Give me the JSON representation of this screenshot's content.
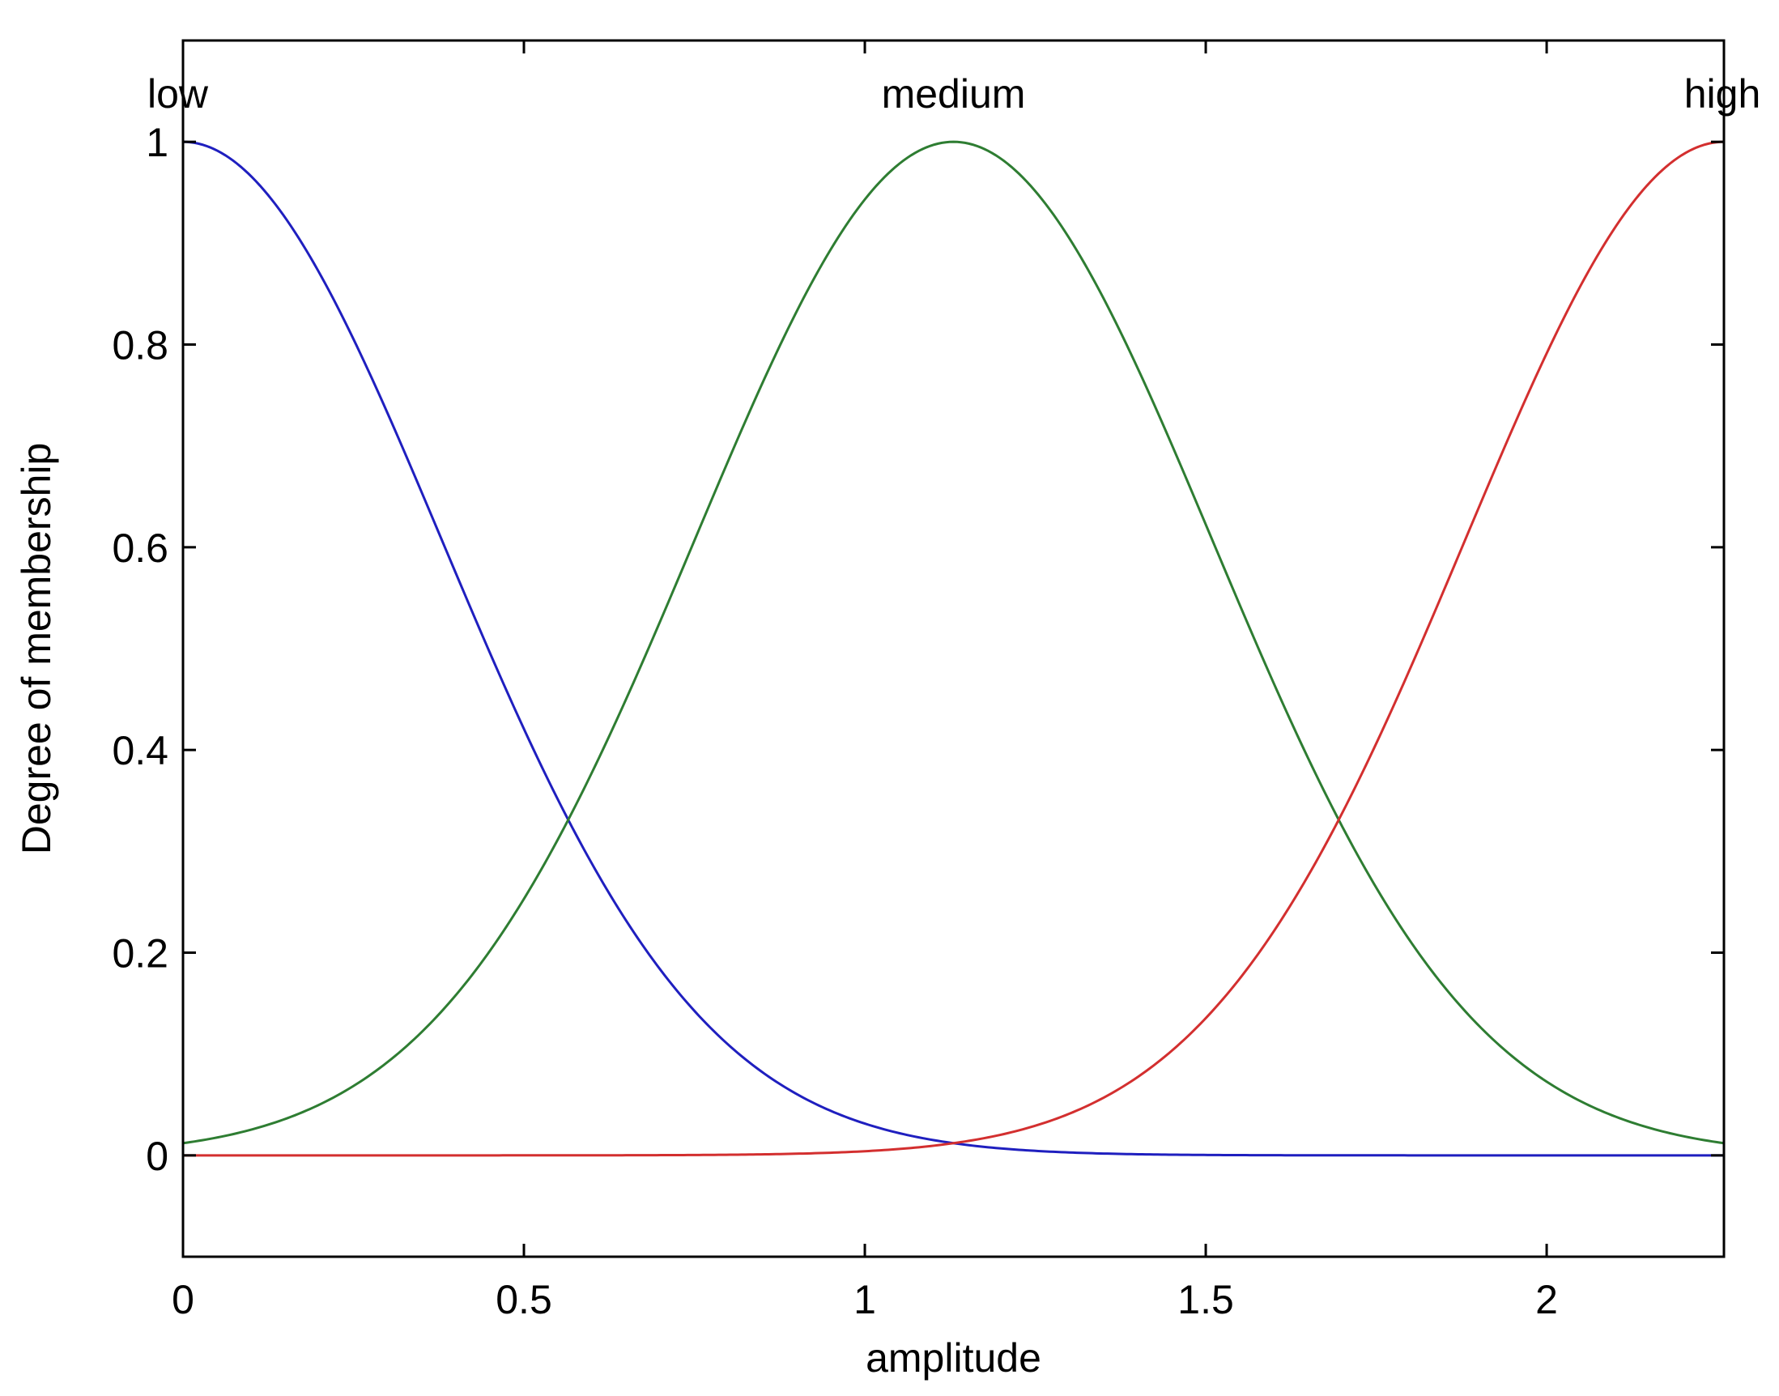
{
  "chart_data": {
    "type": "line",
    "xlabel": "amplitude",
    "ylabel": "Degree of membership",
    "xlim": [
      0,
      2.26
    ],
    "ylim": [
      -0.1,
      1.1
    ],
    "x_ticks": [
      0,
      0.5,
      1,
      1.5,
      2
    ],
    "x_tick_labels": [
      "0",
      "0.5",
      "1",
      "1.5",
      "2"
    ],
    "y_ticks": [
      0,
      0.2,
      0.4,
      0.6,
      0.8,
      1
    ],
    "y_tick_labels": [
      "0",
      "0.2",
      "0.4",
      "0.6",
      "0.8",
      "1"
    ],
    "grid": false,
    "series": [
      {
        "name": "low",
        "shape": "gaussian",
        "center": 0,
        "sigma": 0.38,
        "color": "#1f1fbf",
        "x": [
          0,
          0.1,
          0.2,
          0.3,
          0.4,
          0.5,
          0.57,
          0.7,
          0.8,
          0.9,
          1.0,
          1.1,
          1.2,
          1.4,
          2.26
        ],
        "values": [
          1.0,
          0.97,
          0.87,
          0.73,
          0.58,
          0.42,
          0.33,
          0.18,
          0.11,
          0.06,
          0.03,
          0.015,
          0.005,
          0.0,
          0.0
        ]
      },
      {
        "name": "medium",
        "shape": "gaussian",
        "center": 1.13,
        "sigma": 0.38,
        "color": "#2e7d32",
        "x": [
          0,
          0.2,
          0.4,
          0.57,
          0.7,
          0.9,
          1.0,
          1.13,
          1.3,
          1.5,
          1.7,
          1.9,
          2.1,
          2.26
        ],
        "values": [
          0.01,
          0.05,
          0.16,
          0.33,
          0.53,
          0.83,
          0.94,
          1.0,
          0.91,
          0.62,
          0.33,
          0.13,
          0.04,
          0.01
        ]
      },
      {
        "name": "high",
        "shape": "gaussian",
        "center": 2.26,
        "sigma": 0.38,
        "color": "#d32f2f",
        "x": [
          0,
          0.9,
          1.0,
          1.13,
          1.3,
          1.5,
          1.7,
          1.9,
          2.0,
          2.1,
          2.2,
          2.26
        ],
        "values": [
          0.0,
          0.003,
          0.005,
          0.01,
          0.04,
          0.13,
          0.33,
          0.63,
          0.79,
          0.91,
          0.99,
          1.0
        ]
      }
    ]
  }
}
